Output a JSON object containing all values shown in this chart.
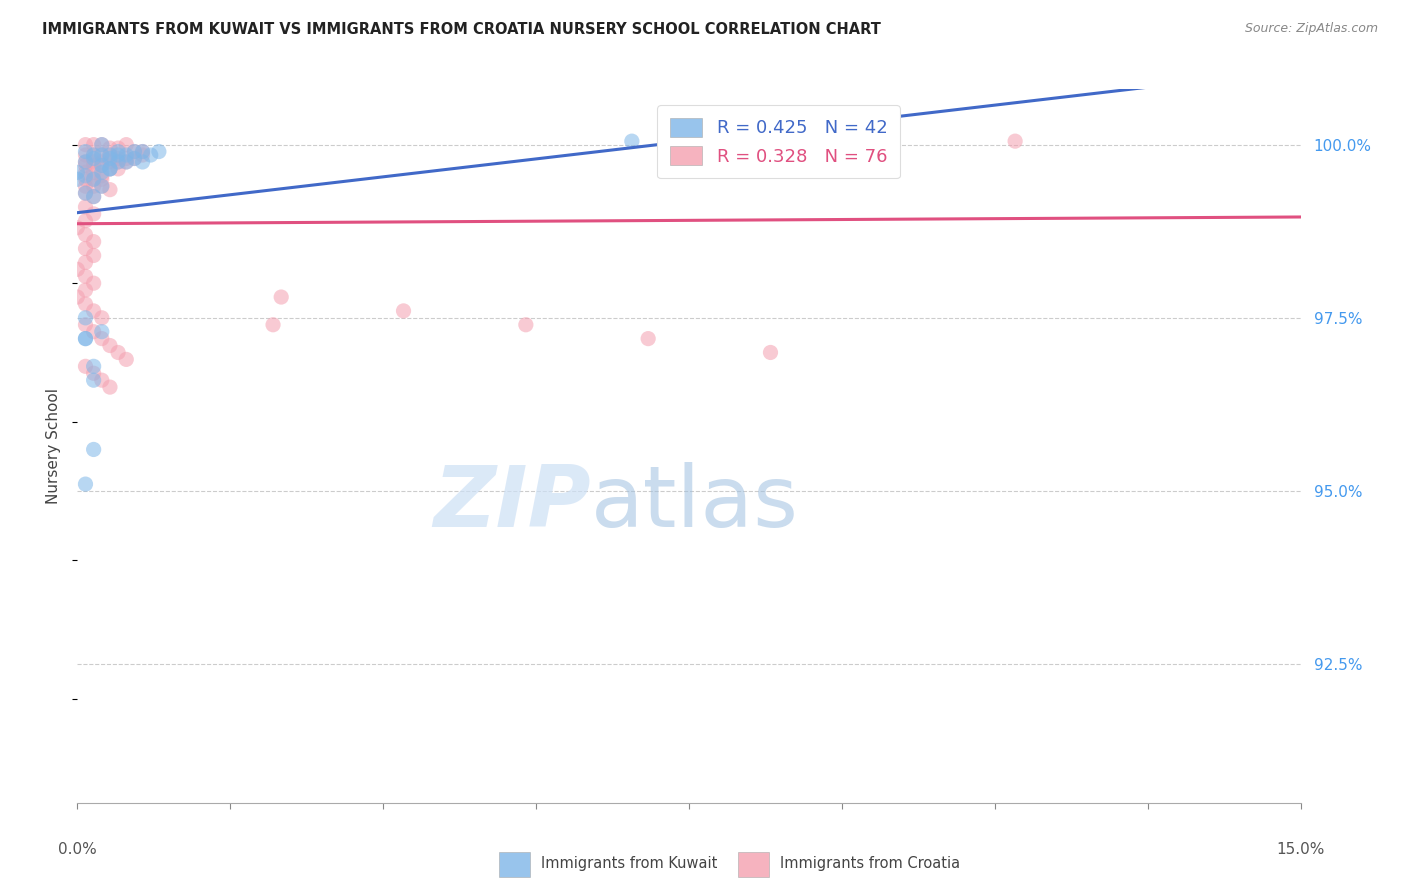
{
  "title": "IMMIGRANTS FROM KUWAIT VS IMMIGRANTS FROM CROATIA NURSERY SCHOOL CORRELATION CHART",
  "source": "Source: ZipAtlas.com",
  "ylabel": "Nursery School",
  "ytick_labels": [
    "100.0%",
    "97.5%",
    "95.0%",
    "92.5%"
  ],
  "ytick_values": [
    1.0,
    0.975,
    0.95,
    0.925
  ],
  "xmin": 0.0,
  "xmax": 0.15,
  "ymin": 0.905,
  "ymax": 1.008,
  "legend_kuwait": "Immigrants from Kuwait",
  "legend_croatia": "Immigrants from Croatia",
  "R_kuwait": 0.425,
  "N_kuwait": 42,
  "R_croatia": 0.328,
  "N_croatia": 76,
  "color_kuwait": "#7EB6E8",
  "color_croatia": "#F4A0B0",
  "line_color_kuwait": "#4169C8",
  "line_color_croatia": "#E05080",
  "scatter_alpha": 0.55,
  "scatter_size": 120,
  "watermark_zip_color": "#cde0f5",
  "watermark_atlas_color": "#a0c0e0",
  "grid_color": "#cccccc",
  "right_tick_color": "#4499ee",
  "kuwait_x": [
    0.001,
    0.002,
    0.003,
    0.004,
    0.005,
    0.006,
    0.007,
    0.008,
    0.009,
    0.01,
    0.001,
    0.002,
    0.003,
    0.004,
    0.005,
    0.006,
    0.007,
    0.008,
    0.003,
    0.004,
    0.0,
    0.001,
    0.002,
    0.003,
    0.004,
    0.005,
    0.001,
    0.002,
    0.003,
    0.002,
    0.001,
    0.002,
    0.001,
    0.003,
    0.002,
    0.001,
    0.001,
    0.0,
    0.068,
    0.076,
    0.092,
    0.1
  ],
  "kuwait_y": [
    0.999,
    0.9985,
    1.0,
    0.9985,
    0.999,
    0.9985,
    0.999,
    0.999,
    0.9985,
    0.999,
    0.9975,
    0.998,
    0.9985,
    0.998,
    0.9985,
    0.9975,
    0.998,
    0.9975,
    0.997,
    0.9965,
    0.996,
    0.9955,
    0.995,
    0.996,
    0.9965,
    0.9975,
    0.993,
    0.9925,
    0.994,
    0.968,
    0.972,
    0.956,
    0.951,
    0.973,
    0.966,
    0.975,
    0.972,
    0.995,
    1.0005,
    1.0005,
    1.0005,
    1.0005
  ],
  "croatia_x": [
    0.001,
    0.002,
    0.003,
    0.004,
    0.005,
    0.006,
    0.007,
    0.008,
    0.001,
    0.002,
    0.003,
    0.004,
    0.005,
    0.006,
    0.007,
    0.008,
    0.001,
    0.002,
    0.003,
    0.004,
    0.005,
    0.006,
    0.001,
    0.002,
    0.003,
    0.004,
    0.005,
    0.001,
    0.002,
    0.003,
    0.001,
    0.002,
    0.003,
    0.001,
    0.002,
    0.003,
    0.004,
    0.001,
    0.002,
    0.001,
    0.002,
    0.001,
    0.0,
    0.001,
    0.002,
    0.001,
    0.002,
    0.001,
    0.0,
    0.001,
    0.002,
    0.001,
    0.0,
    0.001,
    0.002,
    0.003,
    0.001,
    0.002,
    0.003,
    0.004,
    0.005,
    0.006,
    0.001,
    0.002,
    0.003,
    0.004,
    0.024,
    0.025,
    0.04,
    0.055,
    0.07,
    0.085,
    0.076,
    0.092,
    0.1,
    0.115
  ],
  "croatia_y": [
    1.0,
    1.0,
    1.0,
    0.9995,
    0.9995,
    1.0,
    0.999,
    0.999,
    0.9985,
    0.9985,
    0.9985,
    0.9985,
    0.998,
    0.998,
    0.998,
    0.9985,
    0.9975,
    0.9975,
    0.9975,
    0.9975,
    0.9975,
    0.9975,
    0.997,
    0.997,
    0.997,
    0.9965,
    0.9965,
    0.996,
    0.996,
    0.9955,
    0.995,
    0.995,
    0.995,
    0.994,
    0.994,
    0.994,
    0.9935,
    0.993,
    0.9925,
    0.991,
    0.99,
    0.989,
    0.988,
    0.987,
    0.986,
    0.985,
    0.984,
    0.983,
    0.982,
    0.981,
    0.98,
    0.979,
    0.978,
    0.977,
    0.976,
    0.975,
    0.974,
    0.973,
    0.972,
    0.971,
    0.97,
    0.969,
    0.968,
    0.967,
    0.966,
    0.965,
    0.974,
    0.978,
    0.976,
    0.974,
    0.972,
    0.97,
    1.0005,
    1.0005,
    1.0005,
    1.0005
  ]
}
